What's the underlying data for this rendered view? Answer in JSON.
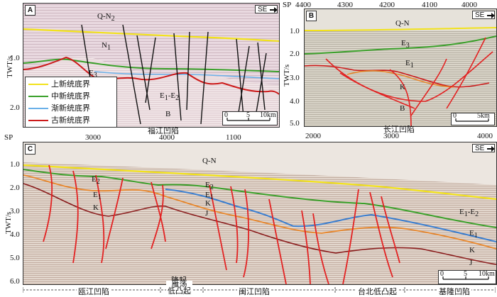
{
  "colors": {
    "upper": "#f2e21a",
    "middle": "#3aa02a",
    "eo": "#6ab0e8",
    "paleo": "#cc1a1a",
    "fault": "#e22222"
  },
  "panelA": {
    "label": "A",
    "direction": "SE",
    "sp_label": "SP",
    "sp_ticks": [
      "3000",
      "4000",
      "1100"
    ],
    "y_axis_label": "TWT/s",
    "y_ticks": [
      "1.0",
      "2.0"
    ],
    "units": [
      "Q-N",
      "N",
      "E",
      "E",
      "E",
      "B"
    ],
    "unit_subs": [
      "2",
      "1",
      "3",
      "1",
      "2",
      ""
    ],
    "legend": [
      "上新统底界",
      "中新统底界",
      "渐新统底界",
      "古新统底界"
    ],
    "scale_ticks": [
      "0",
      "5",
      "10km"
    ],
    "basin_name": "福江凹陷"
  },
  "panelB": {
    "label": "B",
    "direction": "SE",
    "sp_label": "SP",
    "sp_ticks": [
      "4400",
      "4300",
      "4200",
      "4100",
      "4000"
    ],
    "y_axis_label": "TWT/s",
    "y_ticks": [
      "1.0",
      "2.0",
      "3.0",
      "4.0",
      "5.0"
    ],
    "units": [
      "Q-N",
      "E",
      "E",
      "K",
      "B"
    ],
    "unit_subs": [
      "",
      "3",
      "1",
      "",
      ""
    ],
    "scale_ticks": [
      "0",
      "5km"
    ],
    "basin_name": "长江凹陷"
  },
  "panelC": {
    "label": "C",
    "direction": "SE",
    "sp_ticks": [
      "2000",
      "3000",
      "4000"
    ],
    "y_axis_label": "TWT/s",
    "y_ticks": [
      "1.0",
      "2.0",
      "3.0",
      "4.0",
      "5.0",
      "6.0"
    ],
    "units": [
      "Q-N",
      "E",
      "E",
      "K",
      "E",
      "E",
      "K",
      "J",
      "E",
      "E",
      "E",
      "K",
      "J"
    ],
    "unit_subs": [
      "",
      "2",
      "1",
      "",
      "2",
      "1",
      "",
      "",
      "1",
      "2",
      "1",
      "",
      ""
    ],
    "bottom_note": "隆起",
    "scale_ticks": [
      "0",
      "5",
      "10km"
    ],
    "segments": [
      "瓯江凹陷",
      "雁荡\n低凸起",
      "闽江凹陷",
      "台北低凸起",
      "基隆凹陷"
    ]
  }
}
